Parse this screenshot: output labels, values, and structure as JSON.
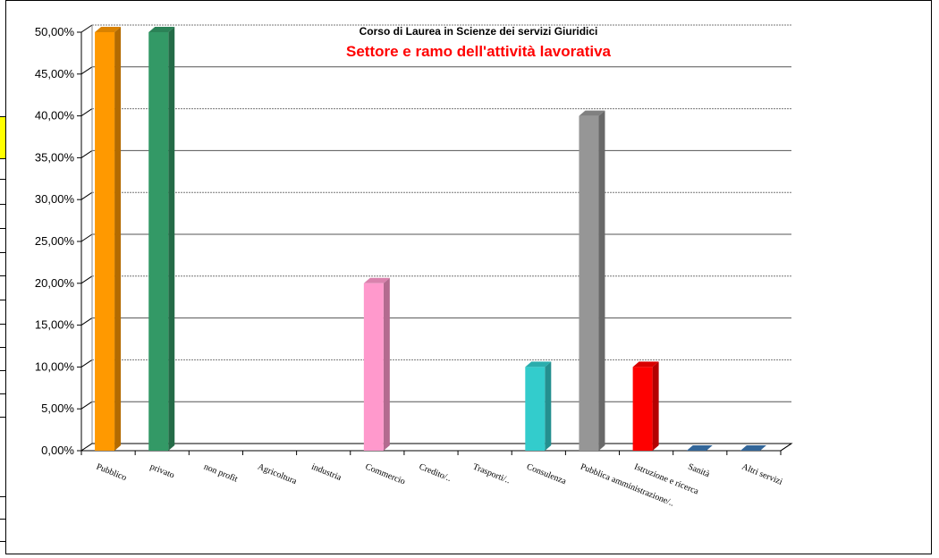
{
  "chart_data": {
    "type": "bar",
    "title": "Corso di Laurea in Scienze dei servizi Giuridici",
    "subtitle": "Settore e ramo dell'attività lavorativa",
    "categories": [
      "Pubblico",
      "privato",
      "non profit",
      "Agricoltura",
      "industria",
      "Commercio",
      "Credito/..",
      "Trasporti/..",
      "Consulenza",
      "Pubblica amministrazione/..",
      "Istruzione e ricerca",
      "Sanità",
      "Altri servizi"
    ],
    "values": [
      50,
      50,
      0,
      0,
      0,
      20,
      0,
      0,
      10,
      40,
      10,
      0,
      0
    ],
    "colors": [
      "#ff9900",
      "#339966",
      "#339966",
      "#339966",
      "#339966",
      "#ff99cc",
      "#33cccc",
      "#33cccc",
      "#33cccc",
      "#969696",
      "#ff0000",
      "#336699",
      "#336699"
    ],
    "ylim": [
      0,
      50
    ],
    "yticks": [
      "0,00%",
      "5,00%",
      "10,00%",
      "15,00%",
      "20,00%",
      "25,00%",
      "30,00%",
      "35,00%",
      "40,00%",
      "45,00%",
      "50,00%"
    ],
    "grid": true,
    "legend": "none",
    "title_color": "#000000",
    "subtitle_color": "#ff0000"
  }
}
